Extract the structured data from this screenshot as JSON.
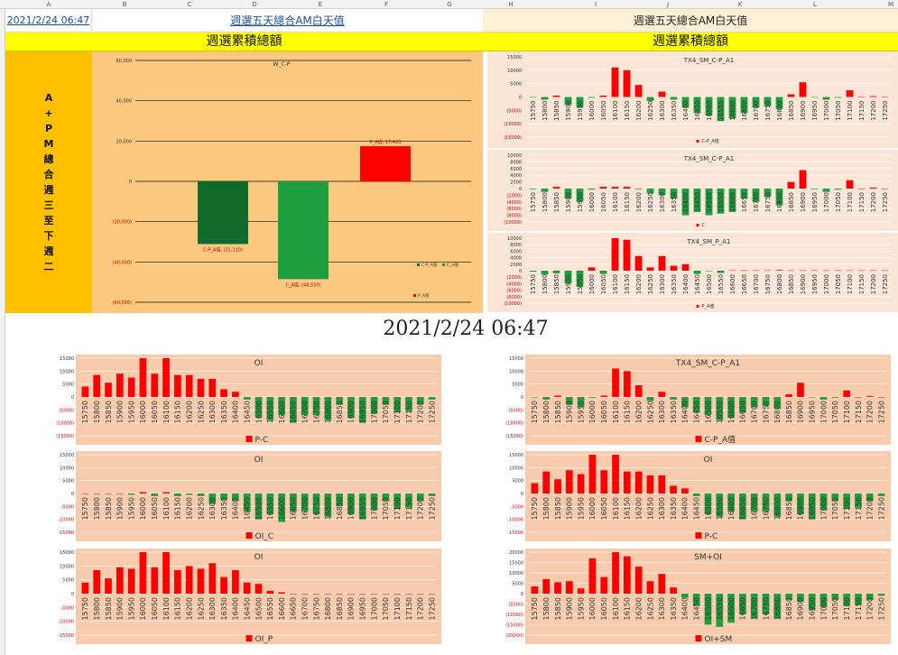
{
  "header": {
    "date_cell": "2021/2/24 06:47",
    "title_left": "週選五天總合AM白天值",
    "title_right": "週選五天總合AM白天值",
    "subtitle_left": "週選累積總額",
    "subtitle_right": "週選累積總額",
    "side_label": [
      "A",
      "+",
      "P",
      "M",
      "總",
      "合",
      "週",
      "三",
      "至",
      "下",
      "週",
      "二"
    ],
    "timestamp": "2021/2/24 06:47",
    "column_letters": [
      "A",
      "B",
      "C",
      "D",
      "E",
      "F",
      "G",
      "H",
      "I",
      "J",
      "K",
      "L",
      "M"
    ]
  },
  "colors": {
    "red": "#ff0000",
    "green": "#1e9e3e",
    "darkgreen": "#0e6b2c",
    "peach": "#f8cbad",
    "orange_bg": "#f9c77a"
  },
  "chart_data": [
    {
      "id": "main",
      "type": "bar",
      "title": "W_C-P",
      "categories": [
        "C-P_A值",
        "C_A值",
        "P_A值"
      ],
      "values": [
        -31110,
        -48530,
        17420
      ],
      "data_labels": [
        "C-P_A值, (31,110)",
        "C_A值, (48,530)",
        "P_A值, 17,420"
      ],
      "ytick_labels": [
        "60,000",
        "40,000",
        "20,000",
        "0",
        "(20,000)",
        "(40,000)",
        "(60,000)"
      ],
      "ylim": [
        -60000,
        60000
      ],
      "legend": [
        "C-P_A值",
        "C_A值",
        "P_A值"
      ]
    },
    {
      "id": "r1",
      "type": "bar",
      "title": "TX4_SM_C-P_A1",
      "ytick_labels": [
        "15000",
        "10000",
        "5000",
        "0",
        "(5000)",
        "(10000)",
        "(15000)"
      ],
      "ylim": [
        -15000,
        15000
      ],
      "categories": [
        "15750",
        "15800",
        "15850",
        "15900",
        "15950",
        "16000",
        "16050",
        "16100",
        "16150",
        "16200",
        "16250",
        "16300",
        "16350",
        "16400",
        "16450",
        "16500",
        "16550",
        "16600",
        "16650",
        "16700",
        "16750",
        "16800",
        "16850",
        "16900",
        "16950",
        "17000",
        "17050",
        "17100",
        "17150",
        "17200",
        "17250"
      ],
      "values": [
        -200,
        -1000,
        500,
        -3000,
        -4000,
        -300,
        500,
        11000,
        10000,
        4500,
        -1500,
        2000,
        -1000,
        -4000,
        -6000,
        -7000,
        -9000,
        -8000,
        -6000,
        -4000,
        -3500,
        -4500,
        1000,
        5500,
        -200,
        -1000,
        -300,
        2500,
        0,
        300,
        0
      ],
      "legend": [
        "C-P_A值"
      ]
    },
    {
      "id": "r2",
      "type": "bar",
      "title": "TX4_SM_C-P_A1",
      "ytick_labels": [
        "10000",
        "8000",
        "6000",
        "4000",
        "2000",
        "0",
        "(2000)",
        "(4000)",
        "(6000)",
        "(8000)",
        "(10000)"
      ],
      "ylim": [
        -10000,
        10000
      ],
      "categories": [
        "15750",
        "15800",
        "15850",
        "15900",
        "15950",
        "16000",
        "16050",
        "16100",
        "16150",
        "16200",
        "16250",
        "16300",
        "16350",
        "16400",
        "16450",
        "16500",
        "16550",
        "16600",
        "16650",
        "16700",
        "16750",
        "16800",
        "16850",
        "16900",
        "16950",
        "17000",
        "17050",
        "17100",
        "17150",
        "17200",
        "17250"
      ],
      "values": [
        -200,
        -1000,
        500,
        -3000,
        -4000,
        -300,
        500,
        500,
        500,
        0,
        -1500,
        -2000,
        -3000,
        -8000,
        -7000,
        -8000,
        -7500,
        -7000,
        -3000,
        -4000,
        -2500,
        -5000,
        2000,
        5500,
        -200,
        -1000,
        -300,
        2500,
        0,
        300,
        0
      ],
      "legend": [
        "C"
      ]
    },
    {
      "id": "r3",
      "type": "bar",
      "title": "TX4_SM_P_A1",
      "ytick_labels": [
        "10000",
        "8000",
        "6000",
        "4000",
        "2000",
        "0",
        "(2000)",
        "(4000)",
        "(6000)",
        "(8000)",
        "(10000)"
      ],
      "ylim": [
        -10000,
        10000
      ],
      "categories": [
        "15750",
        "15800",
        "15850",
        "15900",
        "15950",
        "16000",
        "16050",
        "16100",
        "16150",
        "16200",
        "16250",
        "16300",
        "16350",
        "16400",
        "16450",
        "16500",
        "16550",
        "16600",
        "16650",
        "16700",
        "16750",
        "16800",
        "16850",
        "16900",
        "16950",
        "17000",
        "17050",
        "17100",
        "17150",
        "17200",
        "17250"
      ],
      "values": [
        -300,
        -1200,
        -800,
        -4000,
        -5000,
        1000,
        -1000,
        10000,
        9500,
        4500,
        1000,
        4500,
        1500,
        2000,
        -1000,
        -100,
        -700,
        100,
        100,
        100,
        100,
        200,
        100,
        100,
        100,
        100,
        100,
        100,
        100,
        100,
        100
      ],
      "legend": [
        "P_A值"
      ]
    },
    {
      "id": "l1",
      "type": "bar",
      "title": "OI",
      "ytick_labels": [
        "15000",
        "10000",
        "5000",
        "0",
        "(5000)",
        "(10000)",
        "(15000)"
      ],
      "ylim": [
        -15000,
        15000
      ],
      "categories": [
        "15750",
        "15800",
        "15850",
        "15900",
        "15950",
        "16000",
        "16050",
        "16100",
        "16150",
        "16200",
        "16250",
        "16300",
        "16350",
        "16400",
        "16450",
        "16500",
        "16550",
        "16600",
        "16650",
        "16700",
        "16750",
        "16800",
        "16850",
        "16900",
        "16950",
        "17000",
        "17050",
        "17100",
        "17150",
        "17200",
        "17250"
      ],
      "values": [
        4000,
        8500,
        5500,
        9000,
        7500,
        15000,
        9000,
        15000,
        8500,
        8500,
        7000,
        7000,
        3000,
        2000,
        -1000,
        -8000,
        -9000,
        -7000,
        -10000,
        -7000,
        -7000,
        -9000,
        -3000,
        -8000,
        -10000,
        -6500,
        -3000,
        -6000,
        -5500,
        -3000,
        -1000
      ],
      "legend": [
        "P-C"
      ]
    },
    {
      "id": "l2",
      "type": "bar",
      "title": "OI",
      "ytick_labels": [
        "15000",
        "10000",
        "5000",
        "0",
        "-5000",
        "-10000",
        "-15000"
      ],
      "ylim": [
        -15000,
        15000
      ],
      "categories": [
        "15750",
        "15800",
        "15850",
        "15900",
        "15950",
        "16000",
        "16050",
        "16100",
        "16150",
        "16200",
        "16250",
        "16300",
        "16350",
        "16400",
        "16450",
        "16500",
        "16550",
        "16600",
        "16650",
        "16700",
        "16750",
        "16800",
        "16850",
        "16900",
        "16950",
        "17000",
        "17050",
        "17100",
        "17150",
        "17200",
        "17250"
      ],
      "values": [
        0,
        0,
        0,
        0,
        -500,
        500,
        -1000,
        500,
        -1000,
        -500,
        -1000,
        -4000,
        -2500,
        -3000,
        -7000,
        -10000,
        -8000,
        -11000,
        -7000,
        -7000,
        -8000,
        -9000,
        -5000,
        -8000,
        -10000,
        -6500,
        -3000,
        -6000,
        -5500,
        -3000,
        -1000
      ],
      "legend": [
        "OI_C"
      ]
    },
    {
      "id": "l3",
      "type": "bar",
      "title": "OI",
      "ytick_labels": [
        "15000",
        "10000",
        "5000",
        "0",
        "-5000",
        "-10000",
        "-15000"
      ],
      "ylim": [
        -15000,
        15000
      ],
      "categories": [
        "15750",
        "15800",
        "15850",
        "15900",
        "15950",
        "16000",
        "16050",
        "16100",
        "16150",
        "16200",
        "16250",
        "16300",
        "16350",
        "16400",
        "16450",
        "16500",
        "16550",
        "16600",
        "16650",
        "16700",
        "16750",
        "16800",
        "16850",
        "16900",
        "16950",
        "17000",
        "17050",
        "17100",
        "17150",
        "17200",
        "17250"
      ],
      "values": [
        4000,
        8500,
        5500,
        9500,
        9000,
        15000,
        9500,
        15000,
        8500,
        10000,
        9000,
        11000,
        6000,
        8500,
        4000,
        3500,
        1000,
        500,
        0,
        0,
        0,
        0,
        0,
        0,
        0,
        0,
        0,
        0,
        0,
        0,
        0
      ],
      "legend": [
        "OI_P"
      ]
    },
    {
      "id": "r4",
      "type": "bar",
      "title": "TX4_SM_C-P_A1",
      "ytick_labels": [
        "15000",
        "10000",
        "5000",
        "0",
        "(5000)",
        "(10000)",
        "(15000)"
      ],
      "ylim": [
        -15000,
        15000
      ],
      "categories": [
        "15750",
        "15800",
        "15850",
        "15900",
        "15950",
        "16000",
        "16050",
        "16100",
        "16150",
        "16200",
        "16250",
        "16300",
        "16350",
        "16400",
        "16450",
        "16500",
        "16550",
        "16600",
        "16650",
        "16700",
        "16750",
        "16800",
        "16850",
        "16900",
        "16950",
        "17000",
        "17050",
        "17100",
        "17150",
        "17200",
        "17250"
      ],
      "values": [
        -200,
        -1000,
        500,
        -3000,
        -4000,
        -300,
        500,
        11000,
        10000,
        4500,
        -1500,
        2000,
        -1000,
        -4000,
        -6000,
        -7000,
        -9000,
        -8000,
        -6000,
        -4000,
        -3500,
        -4500,
        1000,
        5500,
        -200,
        -1000,
        -300,
        2500,
        0,
        300,
        0
      ],
      "legend": [
        "C-P_A值"
      ]
    },
    {
      "id": "r5",
      "type": "bar",
      "title": "OI",
      "ytick_labels": [
        "15000",
        "10000",
        "5000",
        "0",
        "-5000",
        "-10000",
        "-15000"
      ],
      "ylim": [
        -15000,
        15000
      ],
      "categories": [
        "15750",
        "15800",
        "15850",
        "15900",
        "15950",
        "16000",
        "16050",
        "16100",
        "16150",
        "16200",
        "16250",
        "16300",
        "16350",
        "16400",
        "16450",
        "16500",
        "16550",
        "16600",
        "16650",
        "16700",
        "16750",
        "16800",
        "16850",
        "16900",
        "16950",
        "17000",
        "17050",
        "17100",
        "17150",
        "17200",
        "17250"
      ],
      "values": [
        4000,
        8500,
        5500,
        9000,
        7500,
        15000,
        9000,
        15000,
        8500,
        8500,
        7000,
        7000,
        3000,
        2000,
        -1000,
        -8000,
        -9000,
        -7000,
        -10000,
        -7000,
        -7000,
        -9000,
        -3000,
        -8000,
        -10000,
        -6500,
        -3000,
        -6000,
        -5500,
        -3000,
        -1000
      ],
      "legend": [
        "P-C"
      ]
    },
    {
      "id": "r6",
      "type": "bar",
      "title": "SM+OI",
      "ytick_labels": [
        "20000",
        "15000",
        "10000",
        "5000",
        "0",
        "(5000)",
        "(10000)",
        "(15000)",
        "(20000)"
      ],
      "ylim": [
        -20000,
        20000
      ],
      "categories": [
        "15750",
        "15800",
        "15850",
        "15900",
        "15950",
        "16000",
        "16050",
        "16100",
        "16150",
        "16200",
        "16250",
        "16300",
        "16350",
        "16400",
        "16450",
        "16500",
        "16550",
        "16600",
        "16650",
        "16700",
        "16750",
        "16800",
        "16850",
        "16900",
        "16950",
        "17000",
        "17050",
        "17100",
        "17150",
        "17200",
        "17250"
      ],
      "values": [
        3500,
        7000,
        5500,
        6000,
        2500,
        17000,
        8000,
        20000,
        18000,
        13000,
        6000,
        9500,
        3000,
        -2000,
        -6000,
        -15000,
        -16000,
        -14000,
        -10000,
        -12000,
        -10000,
        -12000,
        -3000,
        -4000,
        -8000,
        -6500,
        -3000,
        -6000,
        -5500,
        -3000,
        -1000
      ],
      "legend": [
        "OI+SM"
      ]
    }
  ]
}
